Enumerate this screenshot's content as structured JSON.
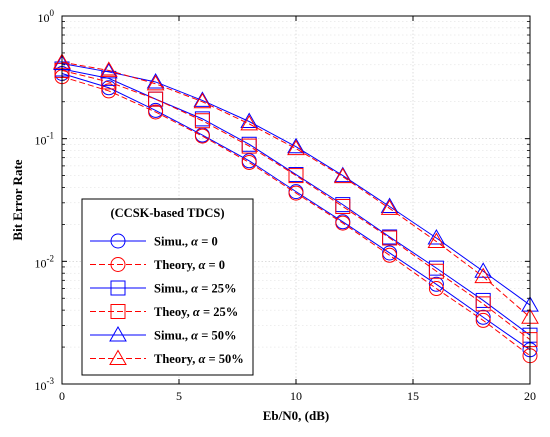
{
  "chart_data": {
    "type": "line",
    "title": "",
    "xlabel": "Eb/N0, (dB)",
    "ylabel": "Bit Error Rate",
    "xlim": [
      0,
      20
    ],
    "ylim": [
      0.001,
      1
    ],
    "yscale": "log",
    "x_ticks": [
      {
        "value": 0,
        "label": "0"
      },
      {
        "value": 5,
        "label": "5"
      },
      {
        "value": 10,
        "label": "10"
      },
      {
        "value": 15,
        "label": "15"
      },
      {
        "value": 20,
        "label": "20"
      }
    ],
    "y_ticks": [
      {
        "value": 1,
        "base": "10",
        "exp": "0"
      },
      {
        "value": 0.1,
        "base": "10",
        "exp": "-1"
      },
      {
        "value": 0.01,
        "base": "10",
        "exp": "-2"
      },
      {
        "value": 0.001,
        "base": "10",
        "exp": "-3"
      }
    ],
    "grid": true,
    "legend": {
      "position": "bottom-left",
      "title": "(CCSK-based TDCS)",
      "entries": [
        {
          "prefix": "Simu., ",
          "symbol": "α",
          "suffix": " = 0"
        },
        {
          "prefix": "Theory, ",
          "symbol": "α",
          "suffix": " = 0"
        },
        {
          "prefix": "Simu., ",
          "symbol": "α",
          "suffix": " = 25%"
        },
        {
          "prefix": "Theoy, ",
          "symbol": "α",
          "suffix": " = 25%"
        },
        {
          "prefix": "Simu., ",
          "symbol": "α",
          "suffix": " = 50%"
        },
        {
          "prefix": "Theory, ",
          "symbol": "α",
          "suffix": " = 50%"
        }
      ]
    },
    "series": [
      {
        "color": "#0000ff",
        "dash": "solid",
        "marker": "circle",
        "x": [
          0,
          2,
          4,
          6,
          8,
          10,
          12,
          14,
          16,
          18,
          20
        ],
        "y": [
          0.34,
          0.26,
          0.17,
          0.107,
          0.066,
          0.037,
          0.021,
          0.0117,
          0.0065,
          0.0035,
          0.0019
        ]
      },
      {
        "color": "#ff0000",
        "dash": "dashed",
        "marker": "circle",
        "x": [
          0,
          2,
          4,
          6,
          8,
          10,
          12,
          14,
          16,
          18,
          20
        ],
        "y": [
          0.32,
          0.245,
          0.165,
          0.105,
          0.064,
          0.036,
          0.0205,
          0.0112,
          0.006,
          0.0033,
          0.0017
        ]
      },
      {
        "color": "#0000ff",
        "dash": "solid",
        "marker": "square",
        "x": [
          0,
          2,
          4,
          6,
          8,
          10,
          12,
          14,
          16,
          18,
          20
        ],
        "y": [
          0.37,
          0.31,
          0.21,
          0.145,
          0.09,
          0.051,
          0.029,
          0.0158,
          0.0088,
          0.0048,
          0.0025
        ]
      },
      {
        "color": "#ff0000",
        "dash": "dashed",
        "marker": "square",
        "x": [
          0,
          2,
          4,
          6,
          8,
          10,
          12,
          14,
          16,
          18,
          20
        ],
        "y": [
          0.36,
          0.29,
          0.21,
          0.14,
          0.087,
          0.05,
          0.028,
          0.0155,
          0.0083,
          0.0045,
          0.0023
        ]
      },
      {
        "color": "#0000ff",
        "dash": "solid",
        "marker": "triangle",
        "x": [
          0,
          2,
          4,
          6,
          8,
          10,
          12,
          14,
          16,
          18,
          20
        ],
        "y": [
          0.41,
          0.35,
          0.29,
          0.205,
          0.138,
          0.086,
          0.05,
          0.028,
          0.0155,
          0.0083,
          0.0044
        ]
      },
      {
        "color": "#ff0000",
        "dash": "dashed",
        "marker": "triangle",
        "x": [
          0,
          2,
          4,
          6,
          8,
          10,
          12,
          14,
          16,
          18,
          20
        ],
        "y": [
          0.42,
          0.36,
          0.28,
          0.2,
          0.132,
          0.083,
          0.049,
          0.027,
          0.0145,
          0.0075,
          0.0035
        ]
      }
    ]
  }
}
